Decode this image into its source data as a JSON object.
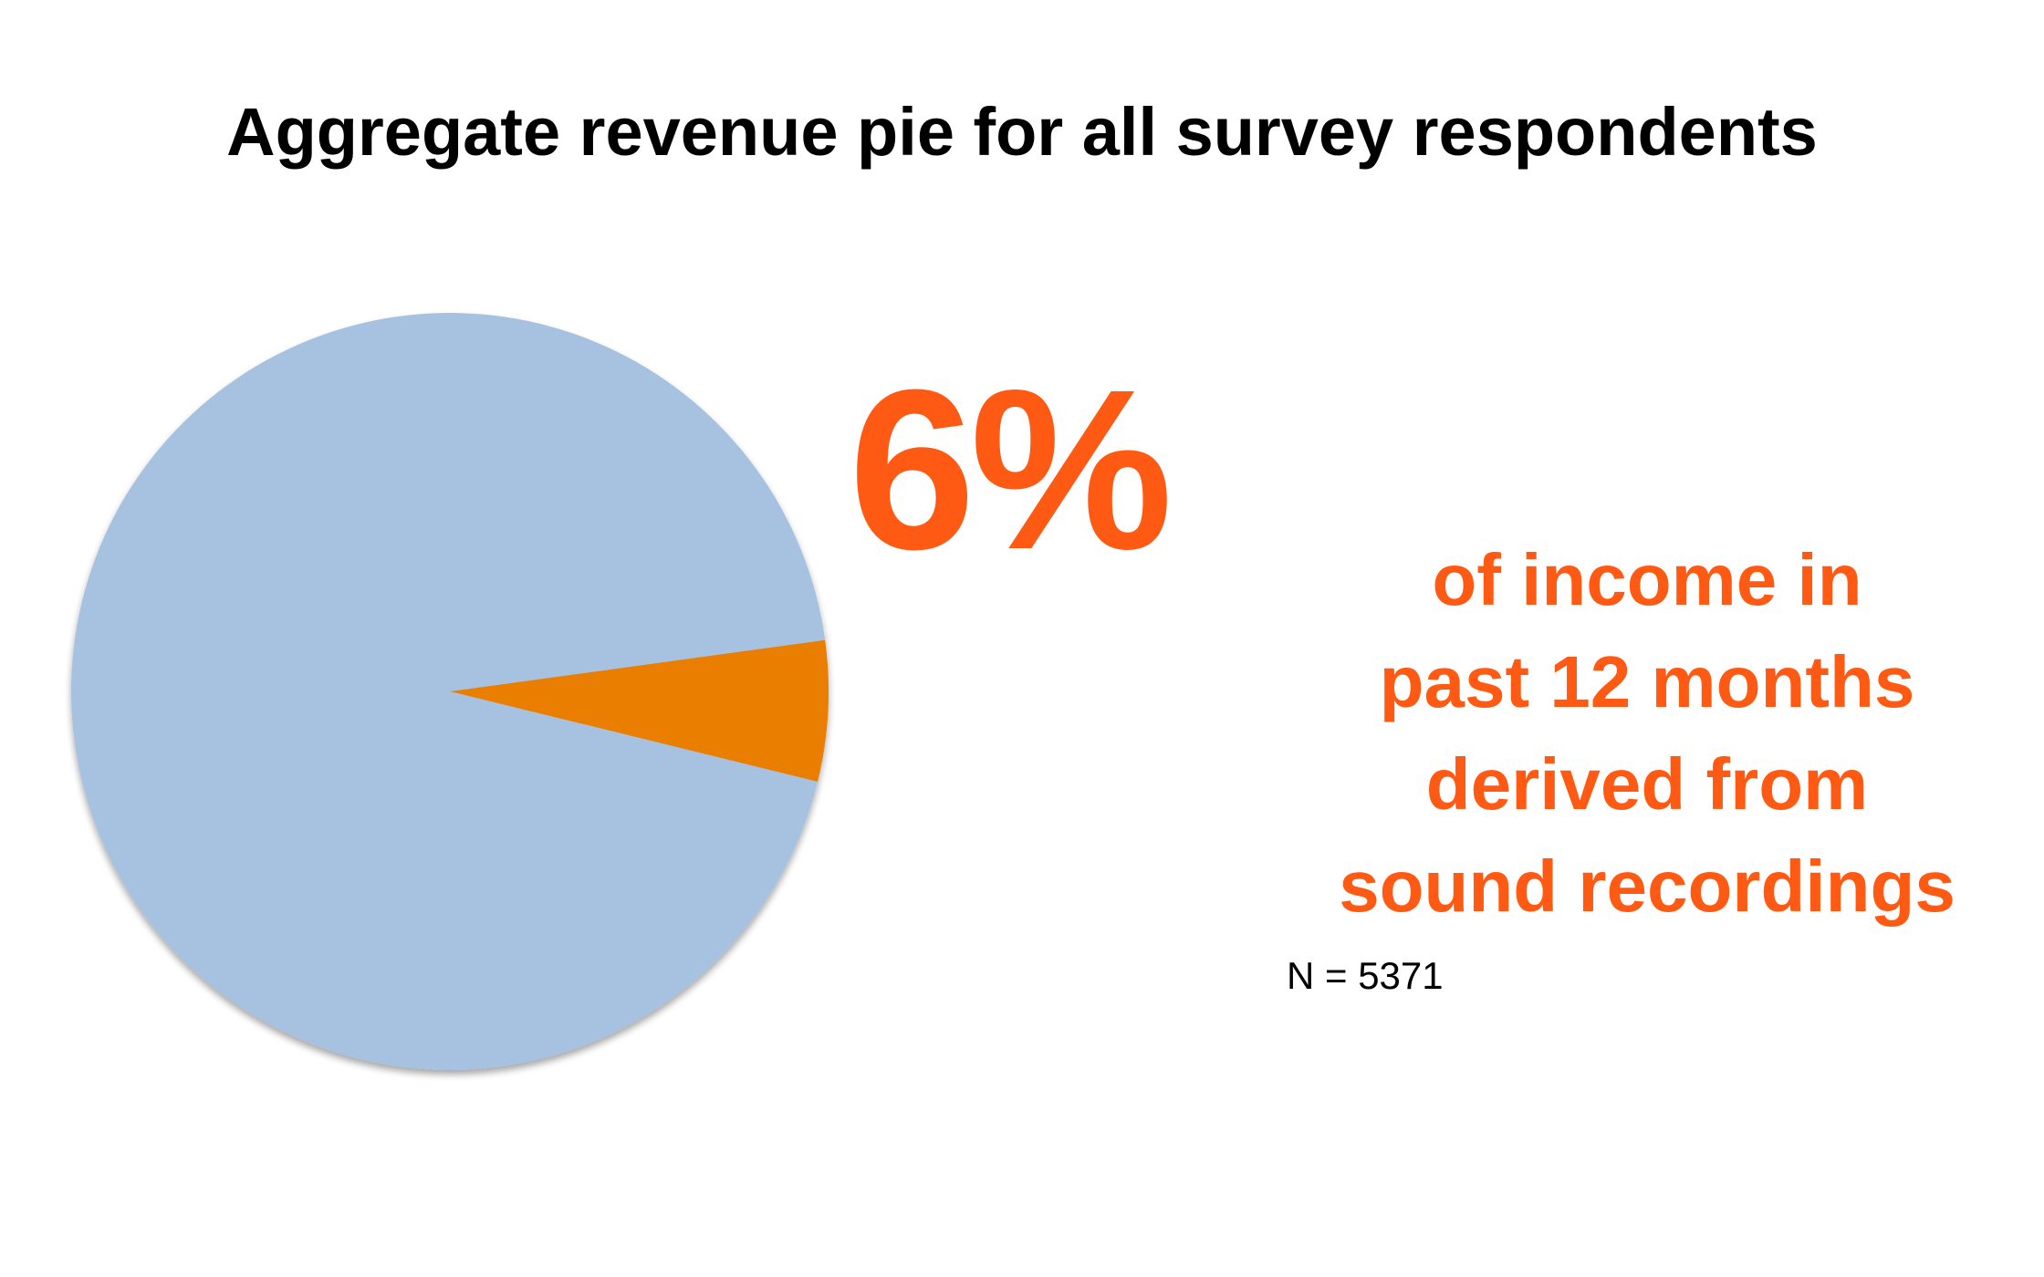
{
  "title": "Aggregate revenue pie for all survey respondents",
  "highlight": {
    "value_text": "6%",
    "caption_lines": [
      "of income in",
      "past 12 months",
      "derived from",
      "sound recordings"
    ],
    "sample_size": "N = 5371"
  },
  "colors": {
    "accent": "#ff5a14",
    "slice_main": "#a7c1e0",
    "slice_highlight": "#e97e00"
  },
  "chart_data": {
    "type": "pie",
    "title": "Aggregate revenue pie for all survey respondents",
    "slices": [
      {
        "value": 94,
        "color": "#a7c1e0"
      },
      {
        "value": 6,
        "color": "#e97e00"
      }
    ],
    "highlight_slice_index": 1,
    "legend": "none",
    "annotations": [
      "6%",
      "of income in past 12 months derived from sound recordings",
      "N = 5371"
    ]
  }
}
